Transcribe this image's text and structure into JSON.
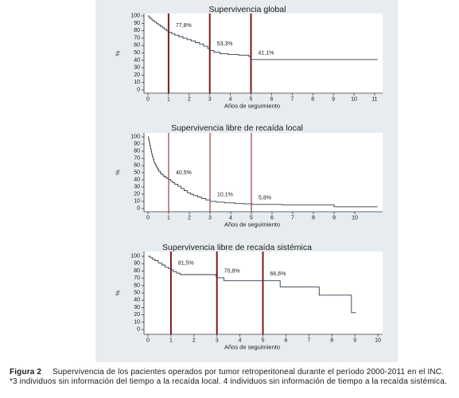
{
  "figure": {
    "caption_label": "Figura 2",
    "caption_text": "Supervivencia de los pacientes operados por tumor retroperitoneal durante el período 2000-2011 en el INC.",
    "footnote": "*3 individuos sin información del tiempo a la recaída local. 4 individuos sin información de tiempo a la recaída sistémica.",
    "colors": {
      "panel_background": "#e6ecef",
      "plot_background": "#ffffff",
      "curve": "#2d3b48",
      "reference_lines": "#801818"
    }
  },
  "chart_data": [
    {
      "type": "line",
      "step": true,
      "title": "Supervivencia global",
      "xlabel": "Años de seguimiento",
      "ylabel": "%",
      "xlim": [
        0,
        11
      ],
      "ylim": [
        0,
        100
      ],
      "grid": false,
      "xticks": [
        0,
        1,
        2,
        3,
        4,
        5,
        6,
        7,
        8,
        9,
        10,
        11
      ],
      "yticks": [
        0,
        10,
        20,
        30,
        40,
        50,
        60,
        70,
        80,
        90,
        100
      ],
      "reference_lines_x": [
        1,
        3,
        5
      ],
      "annotations": [
        {
          "year": 1,
          "value": 77.8,
          "text": "77,8%"
        },
        {
          "year": 3,
          "value": 53.3,
          "text": "53,3%"
        },
        {
          "year": 5,
          "value": 41.1,
          "text": "41,1%"
        }
      ],
      "series": [
        {
          "x": [
            0,
            0.05,
            0.12,
            0.2,
            0.3,
            0.4,
            0.5,
            0.6,
            0.7,
            0.8,
            0.9,
            1.0,
            1.15,
            1.3,
            1.5,
            1.7,
            1.9,
            2.1,
            2.3,
            2.5,
            2.7,
            2.9,
            3.0,
            3.2,
            3.5,
            3.9,
            4.4,
            4.9,
            5.0,
            11.15
          ],
          "y": [
            100,
            98,
            96,
            94,
            92,
            90,
            88,
            86,
            84,
            82,
            80,
            77.8,
            76,
            74,
            72,
            70,
            68,
            66,
            64,
            62,
            59,
            56,
            53.3,
            51,
            49,
            48,
            47,
            45,
            41.1,
            41.1
          ]
        }
      ]
    },
    {
      "type": "line",
      "step": true,
      "title": "Supervivencia libre de recaída local",
      "xlabel": "Años de seguimiento",
      "ylabel": "%",
      "xlim": [
        0,
        10
      ],
      "ylim": [
        0,
        100
      ],
      "grid": false,
      "xticks": [
        0,
        1,
        2,
        3,
        4,
        5,
        6,
        7,
        8,
        9,
        10
      ],
      "yticks": [
        0,
        10,
        20,
        30,
        40,
        50,
        60,
        70,
        80,
        90,
        100
      ],
      "reference_lines_x": [
        1,
        3,
        5
      ],
      "annotations": [
        {
          "year": 1,
          "value": 40.5,
          "text": "40,5%"
        },
        {
          "year": 3,
          "value": 10.1,
          "text": "10,1%"
        },
        {
          "year": 5,
          "value": 5.8,
          "text": "5,8%"
        }
      ],
      "series": [
        {
          "x": [
            0,
            0.03,
            0.06,
            0.09,
            0.12,
            0.15,
            0.18,
            0.22,
            0.26,
            0.3,
            0.35,
            0.4,
            0.46,
            0.52,
            0.6,
            0.68,
            0.76,
            0.85,
            0.93,
            1.0,
            1.1,
            1.2,
            1.3,
            1.45,
            1.6,
            1.75,
            1.9,
            2.05,
            2.2,
            2.4,
            2.6,
            2.8,
            3.0,
            3.3,
            3.7,
            4.2,
            4.6,
            5.0,
            6.5,
            9.0,
            11.1
          ],
          "y": [
            100,
            96,
            92,
            88,
            84,
            80,
            76,
            72,
            68,
            64,
            61,
            58,
            55,
            52,
            49,
            47,
            45,
            43,
            42,
            40.5,
            38,
            36,
            34,
            31,
            28,
            25,
            22,
            20,
            18,
            16,
            14,
            12,
            10.1,
            9,
            8,
            7,
            6.5,
            5.8,
            5.2,
            2.5,
            2.5
          ]
        }
      ]
    },
    {
      "type": "line",
      "step": true,
      "title": "Supervivencia libre de recaída sistémica",
      "xlabel": "Años de seguimiento",
      "ylabel": "%",
      "xlim": [
        0,
        10
      ],
      "ylim": [
        0,
        100
      ],
      "grid": false,
      "xticks": [
        0,
        1,
        2,
        3,
        4,
        5,
        6,
        7,
        8,
        9,
        10
      ],
      "yticks": [
        0,
        10,
        20,
        30,
        40,
        50,
        60,
        70,
        80,
        90,
        100
      ],
      "reference_lines_x": [
        1,
        3,
        5
      ],
      "annotations": [
        {
          "year": 1,
          "value": 81.5,
          "text": "81,5%"
        },
        {
          "year": 3,
          "value": 70.8,
          "text": "70,8%"
        },
        {
          "year": 5,
          "value": 66.6,
          "text": "66,6%"
        }
      ],
      "series": [
        {
          "x": [
            0,
            0.1,
            0.2,
            0.3,
            0.45,
            0.6,
            0.75,
            0.9,
            1.0,
            1.1,
            1.25,
            1.4,
            2.95,
            3.0,
            3.3,
            5.75,
            7.45,
            8.85,
            9.05
          ],
          "y": [
            100,
            98,
            96,
            94,
            91,
            88,
            85,
            83,
            81.5,
            79,
            77,
            75,
            73,
            70.8,
            66.6,
            58,
            47,
            23,
            23
          ]
        }
      ]
    }
  ]
}
